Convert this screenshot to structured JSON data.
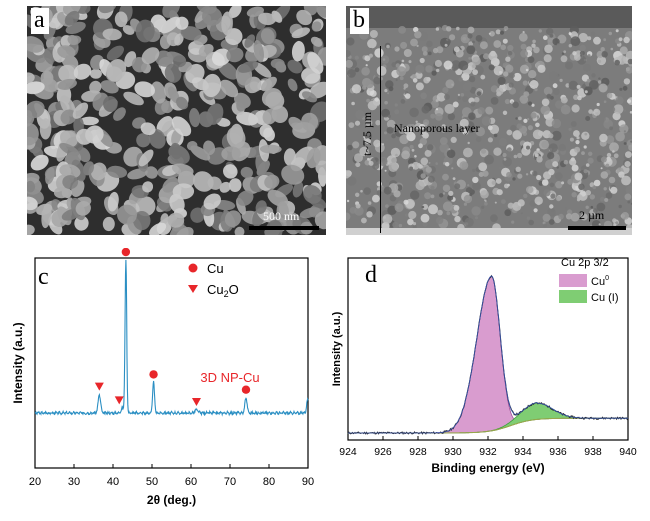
{
  "panels": {
    "a": {
      "letter": "a",
      "scale_bar": "500 nm"
    },
    "b": {
      "letter": "b",
      "scale_bar": "2 µm",
      "thickness_label": "t~7.5 µm",
      "layer_label": "Nanoporous layer"
    },
    "c": {
      "letter": "c"
    },
    "d": {
      "letter": "d"
    }
  },
  "chart_data": [
    {
      "type": "line",
      "panel": "c",
      "xlabel": "2θ (deg.)",
      "ylabel": "Intensity (a.u.)",
      "xlim": [
        20,
        90
      ],
      "xticks": [
        20,
        30,
        40,
        50,
        60,
        70,
        80,
        90
      ],
      "annotation": "3D NP-Cu",
      "legend": [
        {
          "label": "Cu",
          "marker": "circle",
          "color": "#e8262a"
        },
        {
          "label": "Cu",
          "subscript": "2",
          "suffix": "O",
          "marker": "triangle-down",
          "color": "#e8262a"
        }
      ],
      "series": [
        {
          "color": "#2b8fc3",
          "peaks": [
            {
              "x": 36.5,
              "height": 0.12,
              "width": 0.45
            },
            {
              "x": 42.4,
              "height": 0.03,
              "width": 0.5
            },
            {
              "x": 43.3,
              "height": 1.0,
              "width": 0.3
            },
            {
              "x": 50.4,
              "height": 0.2,
              "width": 0.35
            },
            {
              "x": 61.4,
              "height": 0.02,
              "width": 0.6
            },
            {
              "x": 74.1,
              "height": 0.1,
              "width": 0.4
            },
            {
              "x": 89.9,
              "height": 0.09,
              "width": 0.35
            }
          ]
        }
      ],
      "markers": [
        {
          "x": 43.3,
          "kind": "Cu"
        },
        {
          "x": 50.4,
          "kind": "Cu"
        },
        {
          "x": 74.1,
          "kind": "Cu"
        },
        {
          "x": 36.5,
          "kind": "Cu2O"
        },
        {
          "x": 41.6,
          "kind": "Cu2O"
        },
        {
          "x": 61.4,
          "kind": "Cu2O"
        }
      ]
    },
    {
      "type": "area",
      "panel": "d",
      "xlabel": "Binding energy (eV)",
      "ylabel": "Intensity (a.u.)",
      "xlim": [
        924,
        940
      ],
      "xticks": [
        924,
        926,
        928,
        930,
        932,
        934,
        936,
        938,
        940
      ],
      "legend_title": "Cu 2p 3/2",
      "legend": [
        {
          "label": "Cu",
          "superscript": "0",
          "color": "#d99ccf"
        },
        {
          "label": "Cu (I)",
          "color": "#7fcd73"
        }
      ],
      "components": [
        {
          "name": "Cu0",
          "center": 932.2,
          "amplitude": 0.92,
          "width": 0.7,
          "tail": 1.7
        },
        {
          "name": "Cu(I)",
          "center": 934.8,
          "amplitude": 0.1,
          "width": 1.25
        }
      ],
      "baseline": {
        "start": 0.012,
        "end": 0.1
      }
    }
  ]
}
